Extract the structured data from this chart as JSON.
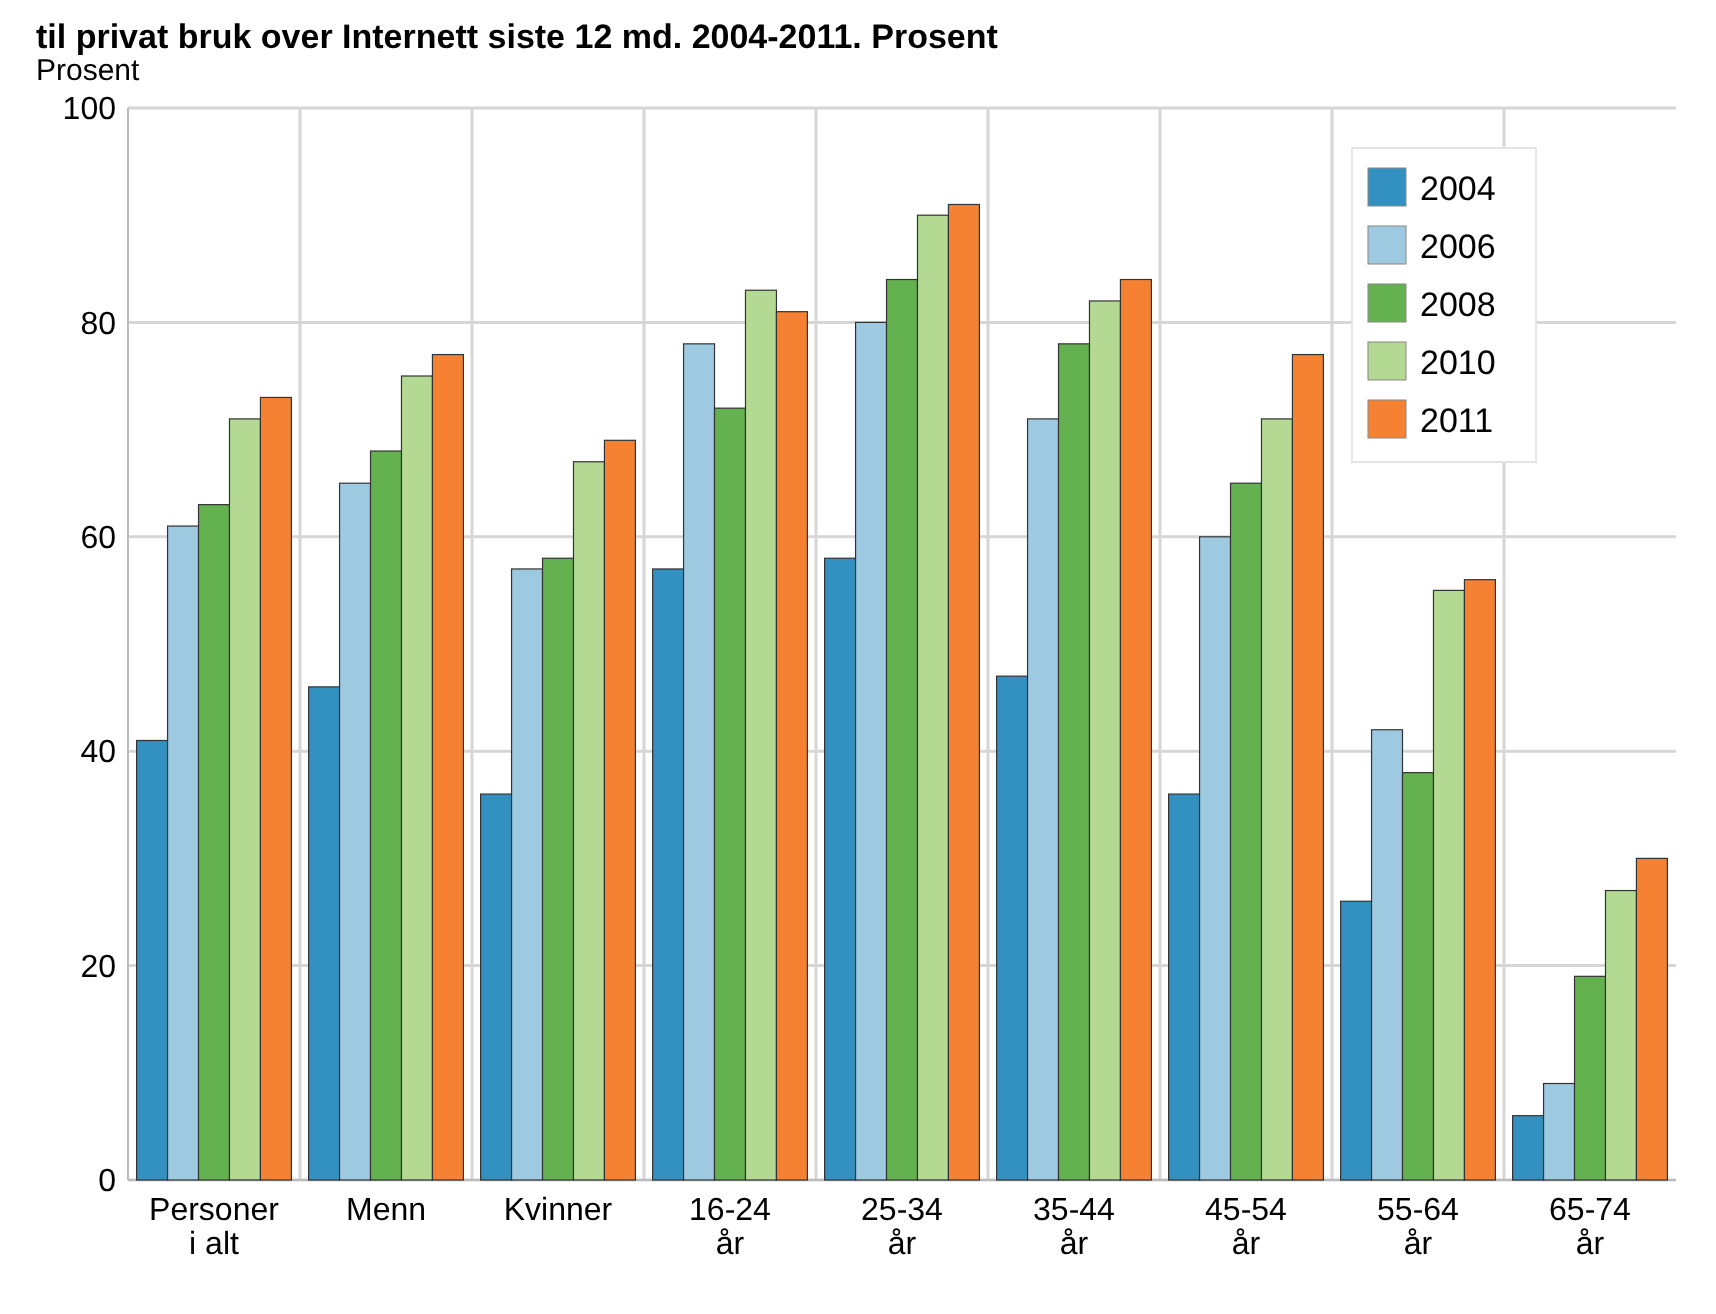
{
  "chart_data": {
    "type": "bar",
    "title": "til privat bruk over Internett siste 12 md. 2004-2011. Prosent",
    "ylabel": "Prosent",
    "categories": [
      "Personer\ni alt",
      "Menn",
      "Kvinner",
      "16-24\når",
      "25-34\når",
      "35-44\når",
      "45-54\når",
      "55-64\når",
      "65-74\når"
    ],
    "series": [
      {
        "name": "2004",
        "color": "#3391c1",
        "values": [
          41,
          46,
          36,
          57,
          58,
          47,
          36,
          26,
          6
        ]
      },
      {
        "name": "2006",
        "color": "#9ecae1",
        "values": [
          61,
          65,
          57,
          78,
          80,
          71,
          60,
          42,
          9
        ]
      },
      {
        "name": "2008",
        "color": "#64b150",
        "values": [
          63,
          68,
          58,
          72,
          84,
          78,
          65,
          38,
          19
        ]
      },
      {
        "name": "2010",
        "color": "#b3d993",
        "values": [
          71,
          75,
          67,
          83,
          90,
          82,
          71,
          55,
          27
        ]
      },
      {
        "name": "2011",
        "color": "#f58233",
        "values": [
          73,
          77,
          69,
          81,
          91,
          84,
          77,
          56,
          30
        ]
      }
    ],
    "ylim": [
      0,
      100
    ],
    "yticks": [
      0,
      20,
      40,
      60,
      80,
      100
    ],
    "grid": true,
    "legend": "top right"
  }
}
